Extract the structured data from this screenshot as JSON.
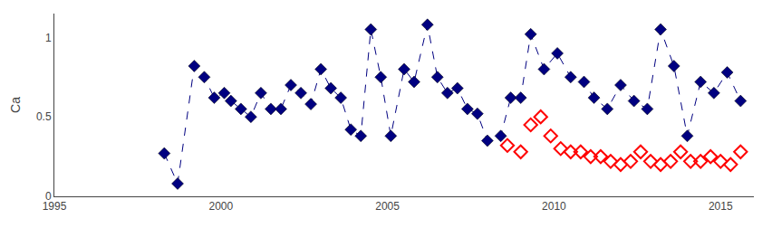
{
  "chart_data": {
    "type": "scatter",
    "y_label": "Ca",
    "xlim": [
      1995,
      2016
    ],
    "ylim": [
      0,
      1.15
    ],
    "xticks": [
      1995,
      2000,
      2005,
      2010,
      2015
    ],
    "yticks": [
      0,
      0.5,
      1
    ],
    "grid": false,
    "series": [
      {
        "color": "#000080",
        "marker": "diamond",
        "line_style": "dashed",
        "x": [
          1998.3,
          1998.7,
          1999.2,
          1999.5,
          1999.8,
          2000.1,
          2000.3,
          2000.6,
          2000.9,
          2001.2,
          2001.5,
          2001.8,
          2002.1,
          2002.4,
          2002.7,
          2003.0,
          2003.3,
          2003.6,
          2003.9,
          2004.2,
          2004.5,
          2004.8,
          2005.1,
          2005.5,
          2005.8,
          2006.2,
          2006.5,
          2006.8,
          2007.1,
          2007.4,
          2007.7,
          2008.0,
          2008.4,
          2008.7,
          2009.0,
          2009.3,
          2009.7,
          2010.1,
          2010.5,
          2010.9,
          2011.2,
          2011.6,
          2012.0,
          2012.4,
          2012.8,
          2013.2,
          2013.6,
          2014.0,
          2014.4,
          2014.8,
          2015.2,
          2015.6
        ],
        "values": [
          0.27,
          0.08,
          0.82,
          0.75,
          0.62,
          0.65,
          0.6,
          0.55,
          0.5,
          0.65,
          0.55,
          0.55,
          0.7,
          0.65,
          0.58,
          0.8,
          0.68,
          0.62,
          0.42,
          0.38,
          1.05,
          0.75,
          0.38,
          0.8,
          0.72,
          1.08,
          0.75,
          0.65,
          0.68,
          0.55,
          0.52,
          0.35,
          0.38,
          0.62,
          0.62,
          1.02,
          0.8,
          0.9,
          0.75,
          0.72,
          0.62,
          0.55,
          0.7,
          0.6,
          0.55,
          1.05,
          0.82,
          0.38,
          0.72,
          0.65,
          0.78,
          0.6
        ]
      },
      {
        "color": "#ff0000",
        "marker": "diamond-open",
        "line_style": "none",
        "x": [
          2008.6,
          2009.0,
          2009.3,
          2009.6,
          2009.9,
          2010.2,
          2010.5,
          2010.8,
          2011.1,
          2011.4,
          2011.7,
          2012.0,
          2012.3,
          2012.6,
          2012.9,
          2013.2,
          2013.5,
          2013.8,
          2014.1,
          2014.4,
          2014.7,
          2015.0,
          2015.3,
          2015.6
        ],
        "values": [
          0.32,
          0.28,
          0.45,
          0.5,
          0.38,
          0.3,
          0.28,
          0.28,
          0.25,
          0.25,
          0.22,
          0.2,
          0.22,
          0.28,
          0.22,
          0.2,
          0.22,
          0.28,
          0.22,
          0.22,
          0.25,
          0.22,
          0.2,
          0.28
        ]
      }
    ]
  }
}
